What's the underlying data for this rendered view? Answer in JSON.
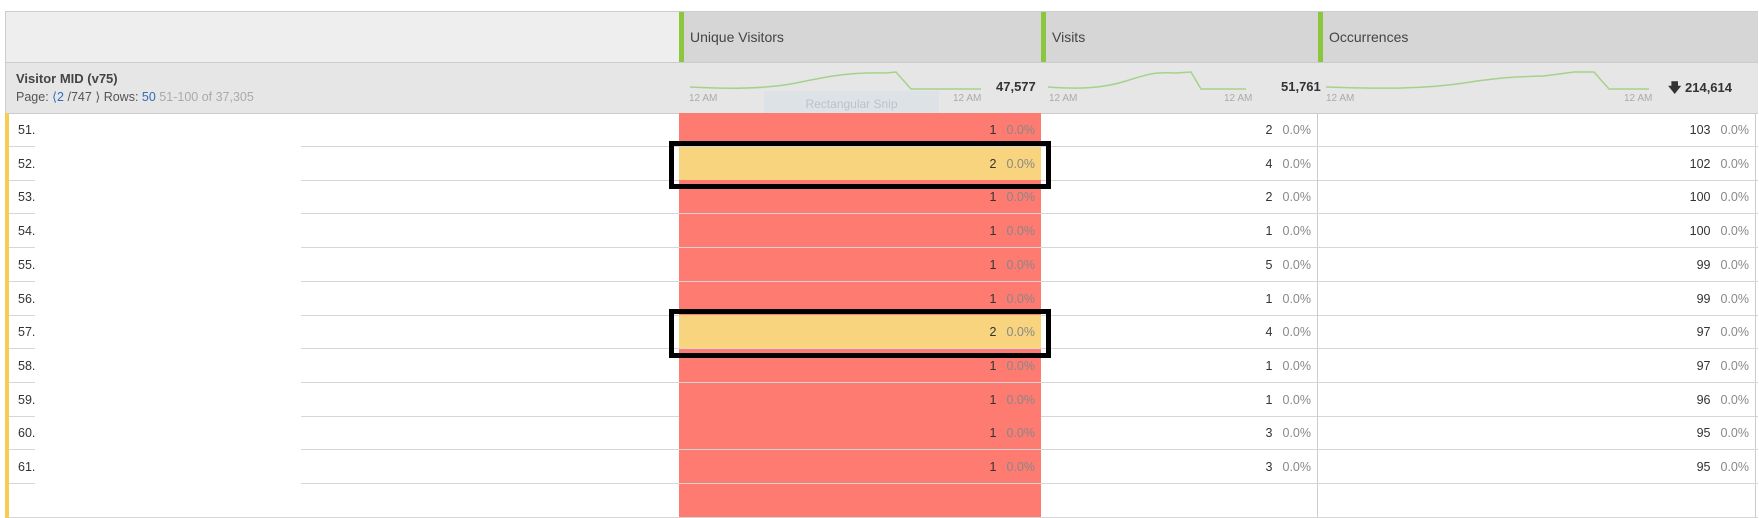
{
  "dimension": {
    "title": "Visitor MID (v75)",
    "page_label": "Page:",
    "page": "2",
    "pages": "/747",
    "rows_label": "Rows:",
    "rows": "50",
    "range": "51-100 of 37,305"
  },
  "columns": [
    {
      "label": "Unique Visitors",
      "total": "47,577",
      "tick_start": "12 AM",
      "tick_end": "12 AM"
    },
    {
      "label": "Visits",
      "total": "51,761",
      "tick_start": "12 AM",
      "tick_end": "12 AM"
    },
    {
      "label": "Occurrences",
      "total": "214,614",
      "tick_start": "12 AM",
      "tick_end": "12 AM",
      "sort_icon": "arrow-down-icon"
    }
  ],
  "overlay_text": "Rectangular Snip",
  "colors": {
    "uv_cell": "#fd7b70",
    "uv_highlight": "#f7d47d",
    "metric_accent": "#8cc63f",
    "row_marker": "#f5cd55"
  },
  "rows": [
    {
      "n": "51.",
      "uv": "1",
      "uvp": "0.0%",
      "v": "2",
      "vp": "0.0%",
      "o": "103",
      "op": "0.0%"
    },
    {
      "n": "52.",
      "uv": "2",
      "uvp": "0.0%",
      "v": "4",
      "vp": "0.0%",
      "o": "102",
      "op": "0.0%",
      "highlight": true
    },
    {
      "n": "53.",
      "uv": "1",
      "uvp": "0.0%",
      "v": "2",
      "vp": "0.0%",
      "o": "100",
      "op": "0.0%"
    },
    {
      "n": "54.",
      "uv": "1",
      "uvp": "0.0%",
      "v": "1",
      "vp": "0.0%",
      "o": "100",
      "op": "0.0%"
    },
    {
      "n": "55.",
      "uv": "1",
      "uvp": "0.0%",
      "v": "5",
      "vp": "0.0%",
      "o": "99",
      "op": "0.0%"
    },
    {
      "n": "56.",
      "uv": "1",
      "uvp": "0.0%",
      "v": "1",
      "vp": "0.0%",
      "o": "99",
      "op": "0.0%"
    },
    {
      "n": "57.",
      "uv": "2",
      "uvp": "0.0%",
      "v": "4",
      "vp": "0.0%",
      "o": "97",
      "op": "0.0%",
      "highlight": true
    },
    {
      "n": "58.",
      "uv": "1",
      "uvp": "0.0%",
      "v": "1",
      "vp": "0.0%",
      "o": "97",
      "op": "0.0%"
    },
    {
      "n": "59.",
      "uv": "1",
      "uvp": "0.0%",
      "v": "1",
      "vp": "0.0%",
      "o": "96",
      "op": "0.0%"
    },
    {
      "n": "60.",
      "uv": "1",
      "uvp": "0.0%",
      "v": "3",
      "vp": "0.0%",
      "o": "95",
      "op": "0.0%"
    },
    {
      "n": "61.",
      "uv": "1",
      "uvp": "0.0%",
      "v": "3",
      "vp": "0.0%",
      "o": "95",
      "op": "0.0%"
    }
  ]
}
